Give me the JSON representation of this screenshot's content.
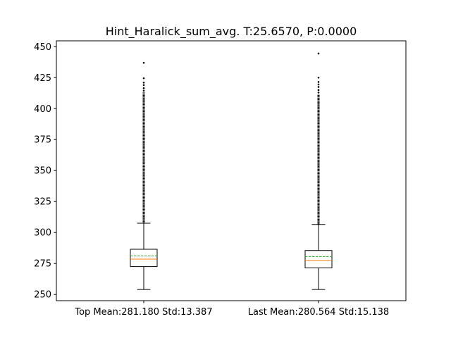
{
  "chart_data": {
    "type": "box",
    "title": "Hint_Haralick_sum_avg. T:25.6570, P:0.0000",
    "xlabel": "",
    "ylabel": "",
    "categories": [
      "Top Mean:281.180 Std:13.387",
      "Last Mean:280.564 Std:15.138"
    ],
    "ylim": [
      245.0,
      454.7
    ],
    "yticks": [
      250,
      275,
      300,
      325,
      350,
      375,
      400,
      425,
      450
    ],
    "grid": false,
    "boxes": [
      {
        "name": "Top",
        "whisker_low": 254.0,
        "q1": 272.5,
        "median": 278.5,
        "mean": 281.18,
        "q3": 286.5,
        "whisker_high": 307.5,
        "outliers_dense_range": [
          307.5,
          413.0
        ],
        "outliers": [
          414.5,
          416.5,
          419.0,
          421.0,
          424.5,
          437.0
        ]
      },
      {
        "name": "Last",
        "whisker_low": 254.0,
        "q1": 271.5,
        "median": 277.5,
        "mean": 280.564,
        "q3": 285.5,
        "whisker_high": 306.5,
        "outliers_dense_range": [
          306.5,
          411.5
        ],
        "outliers": [
          413.0,
          415.0,
          417.5,
          419.5,
          421.5,
          425.0,
          444.5
        ]
      }
    ],
    "colors": {
      "box": "#000000",
      "median": "#ff7f0e",
      "mean": "#2ca02c",
      "outlier": "#000000"
    }
  }
}
